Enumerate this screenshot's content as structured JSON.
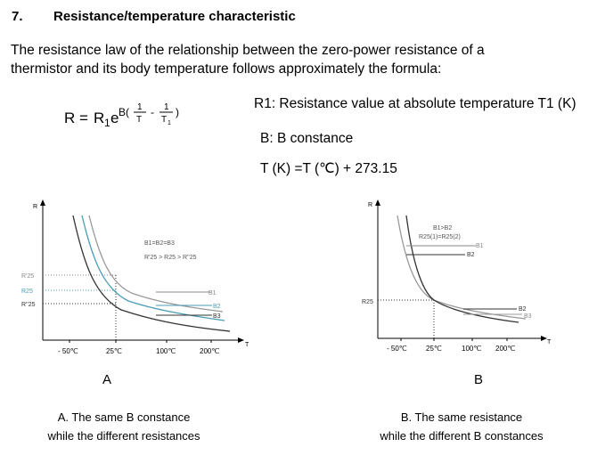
{
  "section": {
    "number": "7.",
    "title": "Resistance/temperature characteristic"
  },
  "intro": "The resistance law of the relationship between the zero-power resistance of a thermistor and its body temperature follows approximately the formula:",
  "formula": {
    "lhs": "R =",
    "r1": "R",
    "r1_sub": "1",
    "e": "e",
    "exp_b": "B(",
    "num1": "1",
    "den1": "T",
    "minus": "-",
    "num2": "1",
    "den2": "T",
    "den2_sub": "1",
    "close": ")"
  },
  "definitions": {
    "r1": "R1: Resistance value at absolute temperature T1 (K)",
    "b": "B: B constance",
    "t": "T (K) =T (℃) + 273.15"
  },
  "figA": {
    "y_axis": "R",
    "x_axis": "T",
    "x_ticks": [
      "- 50℃",
      "25℃",
      "100℃",
      "200℃"
    ],
    "y_ticks": [
      "R'25",
      "R25",
      "R''25"
    ],
    "note_b": "B1=B2=B3",
    "note_r": "R'25 > R25 > R''25",
    "curves": [
      "B1",
      "B2",
      "B3"
    ],
    "panel": "A",
    "caption_1": "A. The same B constance",
    "caption_2": "while the different resistances"
  },
  "figB": {
    "y_axis": "R",
    "x_axis": "T",
    "x_ticks": [
      "- 50℃",
      "25℃",
      "100℃",
      "200℃"
    ],
    "y_ticks": [
      "R25"
    ],
    "note_b": "B1>B2",
    "note_r": "R25(1)=R25(2)",
    "curves_top": [
      "B1",
      "B2"
    ],
    "curves_bottom": [
      "B2",
      "B3"
    ],
    "panel": "B",
    "caption_1": "B. The same resistance",
    "caption_2": "while the different B constances"
  },
  "colors": {
    "curve_dark": "#333333",
    "curve_gray": "#999999",
    "curve_blue": "#4a9bb5",
    "label_gray": "#888888"
  }
}
